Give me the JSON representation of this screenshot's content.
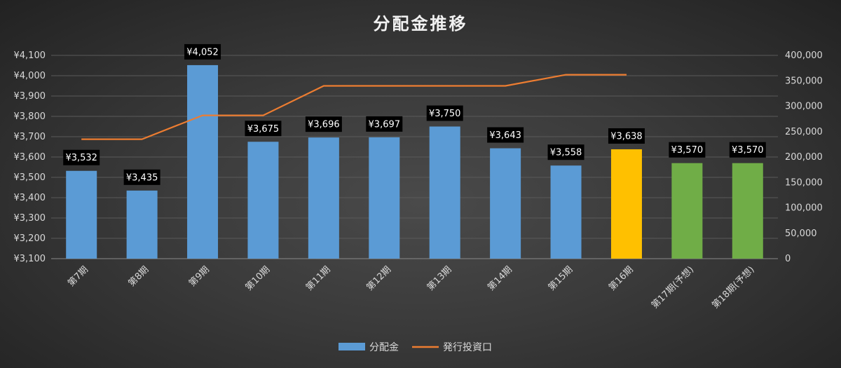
{
  "chart_data": {
    "type": "bar",
    "title": "分配金推移",
    "categories": [
      "第7期",
      "第8期",
      "第9期",
      "第10期",
      "第11期",
      "第12期",
      "第13期",
      "第14期",
      "第15期",
      "第16期",
      "第17期(予想)",
      "第18期(予想)"
    ],
    "series": [
      {
        "name": "分配金",
        "type": "bar",
        "axis": "left",
        "values": [
          3532,
          3435,
          4052,
          3675,
          3696,
          3697,
          3750,
          3643,
          3558,
          3638,
          3570,
          3570
        ],
        "labels": [
          "¥3,532",
          "¥3,435",
          "¥4,052",
          "¥3,675",
          "¥3,696",
          "¥3,697",
          "¥3,750",
          "¥3,643",
          "¥3,558",
          "¥3,638",
          "¥3,570",
          "¥3,570"
        ],
        "colors": [
          "#5b9bd5",
          "#5b9bd5",
          "#5b9bd5",
          "#5b9bd5",
          "#5b9bd5",
          "#5b9bd5",
          "#5b9bd5",
          "#5b9bd5",
          "#5b9bd5",
          "#ffc000",
          "#70ad47",
          "#70ad47"
        ]
      },
      {
        "name": "発行投資口",
        "type": "line",
        "axis": "right",
        "values": [
          235000,
          235000,
          282000,
          282000,
          340000,
          340000,
          340000,
          340000,
          362000,
          362000,
          null,
          null
        ],
        "color": "#ed7d31"
      }
    ],
    "y_left": {
      "ylim": [
        3100,
        4100
      ],
      "ticks": [
        3100,
        3200,
        3300,
        3400,
        3500,
        3600,
        3700,
        3800,
        3900,
        4000,
        4100
      ],
      "tick_labels": [
        "¥3,100",
        "¥3,200",
        "¥3,300",
        "¥3,400",
        "¥3,500",
        "¥3,600",
        "¥3,700",
        "¥3,800",
        "¥3,900",
        "¥4,000",
        "¥4,100"
      ]
    },
    "y_right": {
      "ylim": [
        0,
        400000
      ],
      "ticks": [
        0,
        50000,
        100000,
        150000,
        200000,
        250000,
        300000,
        350000,
        400000
      ],
      "tick_labels": [
        "0",
        "50,000",
        "100,000",
        "150,000",
        "200,000",
        "250,000",
        "300,000",
        "350,000",
        "400,000"
      ]
    },
    "grid": true,
    "legend": {
      "position": "bottom",
      "entries": [
        {
          "label": "分配金",
          "color": "#5b9bd5",
          "kind": "bar"
        },
        {
          "label": "発行投資口",
          "color": "#ed7d31",
          "kind": "line"
        }
      ]
    }
  }
}
